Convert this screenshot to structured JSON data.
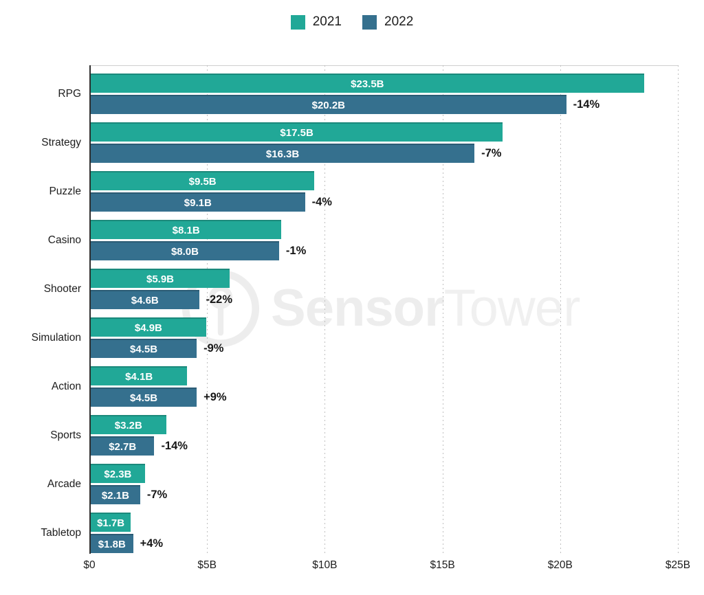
{
  "legend": {
    "items": [
      {
        "label": "2021",
        "color": "#21a897"
      },
      {
        "label": "2022",
        "color": "#35708e"
      }
    ]
  },
  "watermark": {
    "brand_bold": "Sensor",
    "brand_light": "Tower",
    "color": "#ededed"
  },
  "chart_data": {
    "type": "bar",
    "orientation": "horizontal",
    "title": "",
    "categories": [
      "RPG",
      "Strategy",
      "Puzzle",
      "Casino",
      "Shooter",
      "Simulation",
      "Action",
      "Sports",
      "Arcade",
      "Tabletop"
    ],
    "series": [
      {
        "name": "2021",
        "color": "#21a897",
        "values": [
          23.5,
          17.5,
          9.5,
          8.1,
          5.9,
          4.9,
          4.1,
          3.2,
          2.3,
          1.7
        ],
        "labels": [
          "$23.5B",
          "$17.5B",
          "$9.5B",
          "$8.1B",
          "$5.9B",
          "$4.9B",
          "$4.1B",
          "$3.2B",
          "$2.3B",
          "$1.7B"
        ]
      },
      {
        "name": "2022",
        "color": "#35708e",
        "values": [
          20.2,
          16.3,
          9.1,
          8.0,
          4.6,
          4.5,
          4.5,
          2.7,
          2.1,
          1.8
        ],
        "labels": [
          "$20.2B",
          "$16.3B",
          "$9.1B",
          "$8.0B",
          "$4.6B",
          "$4.5B",
          "$4.5B",
          "$2.7B",
          "$2.1B",
          "$1.8B"
        ]
      }
    ],
    "change_labels": [
      "-14%",
      "-7%",
      "-4%",
      "-1%",
      "-22%",
      "-9%",
      "+9%",
      "-14%",
      "-7%",
      "+4%"
    ],
    "x_axis": {
      "tick_labels": [
        "$0",
        "$5B",
        "$10B",
        "$15B",
        "$20B",
        "$25B"
      ],
      "range": [
        0,
        25
      ],
      "unit": "billions USD",
      "gridlines": "dotted-vertical"
    },
    "legend_position": "top-center"
  }
}
